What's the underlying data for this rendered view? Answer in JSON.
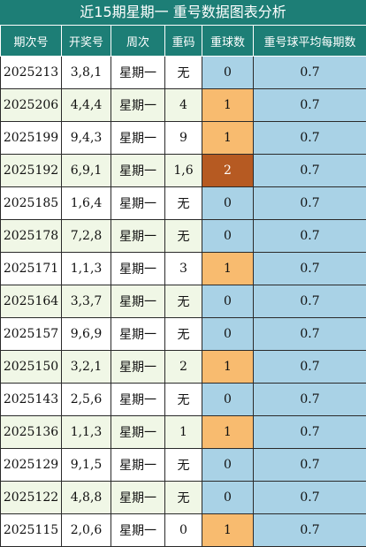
{
  "title": "近15期星期一 重号数据图表分析",
  "headers": [
    "期次号",
    "开奖号",
    "周次",
    "重码",
    "重球数",
    "重号球平均每期数"
  ],
  "colors": {
    "header": "#1d7e76",
    "row_alt": "#f0f7e6",
    "ball_zero": "#a9d2e6",
    "ball_one": "#f8bb6f",
    "ball_two": "#b65a22"
  },
  "rows": [
    {
      "period": "2025213",
      "numbers": "3,8,1",
      "weekday": "星期一",
      "repeat": "无",
      "count": "0",
      "avg": "0.7"
    },
    {
      "period": "2025206",
      "numbers": "4,4,4",
      "weekday": "星期一",
      "repeat": "4",
      "count": "1",
      "avg": "0.7"
    },
    {
      "period": "2025199",
      "numbers": "9,4,3",
      "weekday": "星期一",
      "repeat": "9",
      "count": "1",
      "avg": "0.7"
    },
    {
      "period": "2025192",
      "numbers": "6,9,1",
      "weekday": "星期一",
      "repeat": "1,6",
      "count": "2",
      "avg": "0.7"
    },
    {
      "period": "2025185",
      "numbers": "1,6,4",
      "weekday": "星期一",
      "repeat": "无",
      "count": "0",
      "avg": "0.7"
    },
    {
      "period": "2025178",
      "numbers": "7,2,8",
      "weekday": "星期一",
      "repeat": "无",
      "count": "0",
      "avg": "0.7"
    },
    {
      "period": "2025171",
      "numbers": "1,1,3",
      "weekday": "星期一",
      "repeat": "3",
      "count": "1",
      "avg": "0.7"
    },
    {
      "period": "2025164",
      "numbers": "3,3,7",
      "weekday": "星期一",
      "repeat": "无",
      "count": "0",
      "avg": "0.7"
    },
    {
      "period": "2025157",
      "numbers": "9,6,9",
      "weekday": "星期一",
      "repeat": "无",
      "count": "0",
      "avg": "0.7"
    },
    {
      "period": "2025150",
      "numbers": "3,2,1",
      "weekday": "星期一",
      "repeat": "2",
      "count": "1",
      "avg": "0.7"
    },
    {
      "period": "2025143",
      "numbers": "2,5,6",
      "weekday": "星期一",
      "repeat": "无",
      "count": "0",
      "avg": "0.7"
    },
    {
      "period": "2025136",
      "numbers": "1,1,3",
      "weekday": "星期一",
      "repeat": "1",
      "count": "1",
      "avg": "0.7"
    },
    {
      "period": "2025129",
      "numbers": "9,1,5",
      "weekday": "星期一",
      "repeat": "无",
      "count": "0",
      "avg": "0.7"
    },
    {
      "period": "2025122",
      "numbers": "4,8,8",
      "weekday": "星期一",
      "repeat": "无",
      "count": "0",
      "avg": "0.7"
    },
    {
      "period": "2025115",
      "numbers": "2,0,6",
      "weekday": "星期一",
      "repeat": "0",
      "count": "1",
      "avg": "0.7"
    }
  ]
}
